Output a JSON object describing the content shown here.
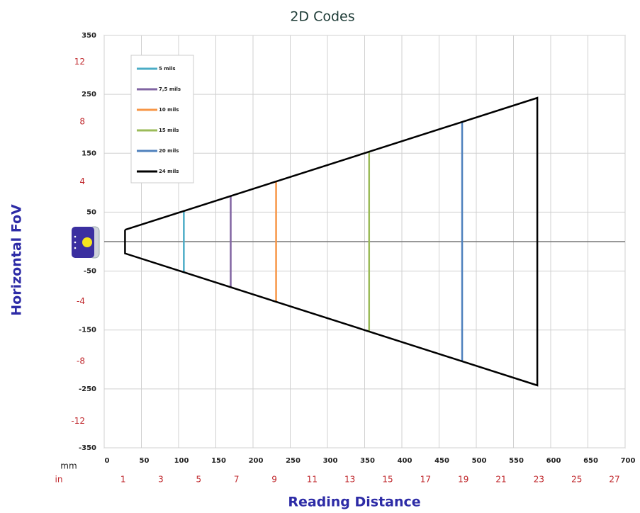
{
  "chart_data": {
    "type": "line",
    "title": "2D Codes",
    "x_label": "Reading Distance",
    "y_label": "Horizontal FoV",
    "x_unit": "mm",
    "x2_unit": "in",
    "xlim": [
      0,
      700
    ],
    "xticks": [
      0,
      50,
      100,
      150,
      200,
      250,
      300,
      350,
      400,
      450,
      500,
      550,
      600,
      650,
      700
    ],
    "x2lim": [
      0,
      27.56
    ],
    "x2ticks": [
      1,
      3,
      5,
      7,
      9,
      11,
      13,
      15,
      17,
      19,
      21,
      23,
      25,
      27
    ],
    "ylim": [
      -350,
      350
    ],
    "yticks": [
      -350,
      -250,
      -150,
      -50,
      50,
      150,
      250,
      350
    ],
    "y2lim": [
      -13.78,
      13.78
    ],
    "y2ticks": [
      -12,
      -8,
      -4,
      4,
      8,
      12
    ],
    "grid": true,
    "legend": "top-left",
    "series": [
      {
        "name": "5 mils",
        "color": "#4bacc6",
        "x": [
          107,
          107
        ],
        "values": [
          52,
          -52
        ]
      },
      {
        "name": "7,5 mils",
        "color": "#8064a2",
        "x": [
          170,
          170
        ],
        "values": [
          78,
          -78
        ]
      },
      {
        "name": "10 mils",
        "color": "#f79646",
        "x": [
          231,
          231
        ],
        "values": [
          101,
          -101
        ]
      },
      {
        "name": "15 mils",
        "color": "#9bbb59",
        "x": [
          356,
          356
        ],
        "values": [
          153,
          -153
        ]
      },
      {
        "name": "20 mils",
        "color": "#4f81bd",
        "x": [
          481,
          481
        ],
        "values": [
          203,
          -203
        ]
      },
      {
        "name": "24 mils",
        "color": "#000000",
        "x": [
          28,
          582,
          582,
          28,
          28
        ],
        "values": [
          20,
          244,
          -244,
          -20,
          20
        ]
      }
    ]
  }
}
